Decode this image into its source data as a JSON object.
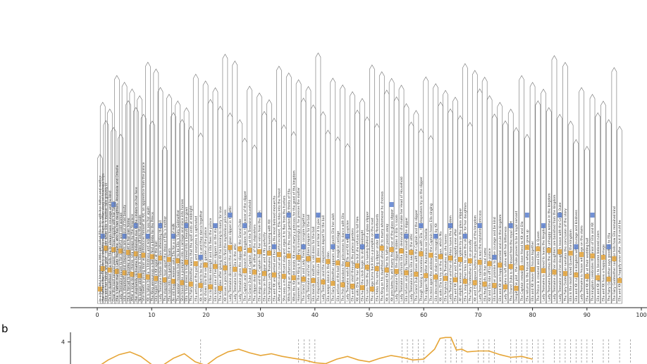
{
  "panel_labels": {
    "b": "b"
  },
  "chart_data": [
    {
      "type": "timeline",
      "xlim": [
        0,
        100
      ],
      "xticks": [
        0,
        10,
        20,
        30,
        40,
        50,
        60,
        70,
        80,
        90,
        100
      ],
      "tick_labels": [
        "0",
        "10",
        "20",
        "30",
        "40",
        "50",
        "60",
        "70",
        "80",
        "90",
        "100"
      ],
      "grid": false,
      "colors": {
        "frame": "#6f6f6f",
        "protagonist_tag": "#e6a537",
        "other_tag": "#5b7fcf",
        "text": "#333333",
        "axis": "#222222"
      },
      "events": [
        {
          "x": 0.5,
          "text": "In a beautiful kingdom, a little girl called Ella lives with her father and mother"
        },
        {
          "x": 1.0,
          "text": "Her father ( Ben Chaplin ), a wealthy merchant, is often away on business trips"
        },
        {
          "x": 1.6,
          "text": "Ella and her father are grief - stricken when Ella 's mother falls gravely ill"
        },
        {
          "x": 2.3,
          "text": "On her deathbed , she tells Ella to always have courage and be kind"
        },
        {
          "x": 3.0,
          "text": "Over the next several years , Ella lives happily with her father"
        },
        {
          "x": 3.6,
          "text": "Ella 's father marries Lady Tremaine, who has two daughters, Anastasia and Drisella"
        },
        {
          "x": 4.3,
          "text": "Lady Tremaine proves to be a prideful and cold woman"
        },
        {
          "x": 5.0,
          "text": "Ella 's stepmother and stepsisters are jealous of her beauty"
        },
        {
          "x": 5.7,
          "text": "Ella is forced to become a servant in her own home"
        },
        {
          "x": 6.4,
          "text": "After a long day of chores, Ella sleeps by the fireplace"
        },
        {
          "x": 7.1,
          "text": "Her stepfamily nickname her Cinderella due to the cinders on her face"
        },
        {
          "x": 7.8,
          "text": "No longer able to bear it, Ella rides off into the woods"
        },
        {
          "x": 8.5,
          "text": "She meets a young man who introduces himself as Kit, an apprentice from the palace"
        },
        {
          "x": 9.3,
          "text": "Kit is taken by Ella 's kindness and wishes to see her again"
        },
        {
          "x": 10.1,
          "text": "The King announces a ball to find a bride for the Prince"
        },
        {
          "x": 10.8,
          "text": "Ella hopes to see Kit again at the ball"
        },
        {
          "x": 11.6,
          "text": "Lady Tremaine forbids Ella from attending the ball"
        },
        {
          "x": 12.4,
          "text": "The stepsisters tear apart the dress of Ella 's mother"
        },
        {
          "x": 13.2,
          "text": "Ella runs into the garden in tears"
        },
        {
          "x": 14.0,
          "text": "An old beggar woman asks Ella for a cup of milk"
        },
        {
          "x": 14.8,
          "text": "The woman reveals herself to be Ella 's Fairy Godmother"
        },
        {
          "x": 15.6,
          "text": "She transforms a pumpkin into a carriage and mice into horses"
        },
        {
          "x": 16.4,
          "text": "Ella 's torn dress is transformed into a beautiful blue gown"
        },
        {
          "x": 17.2,
          "text": "The Fairy Godmother warns that the spell ends at midnight"
        },
        {
          "x": 18.1,
          "text": "Ella arrives at the palace and everyone is captivated"
        },
        {
          "x": 19.0,
          "text": "Kit is revealed to be the Prince and they dance together"
        },
        {
          "x": 19.9,
          "text": "Kit shows Ella the secret garden of the palace"
        },
        {
          "x": 20.8,
          "text": "The clock strikes midnight and Ella flees the palace"
        },
        {
          "x": 21.7,
          "text": "Ella loses one of her glass slippers on the stairs"
        },
        {
          "x": 22.6,
          "text": "The King dies after giving Kit his blessing to marry for love"
        },
        {
          "x": 23.5,
          "text": "Kit issues a proclamation to find the mysterious princess"
        },
        {
          "x": 24.4,
          "text": "Lady Tremaine discovers the other glass slipper in the attic"
        },
        {
          "x": 25.3,
          "text": "Lady Tremaine locks Ella in the attic"
        },
        {
          "x": 26.2,
          "text": "Lady Tremaine gives the slipper to the Grand Duke"
        },
        {
          "x": 27.1,
          "text": "The Captain and Kit search the kingdom for the owner of the slipper"
        },
        {
          "x": 28.0,
          "text": "The Grand Duke and Captain arrive at the Tremaine household"
        },
        {
          "x": 28.9,
          "text": "The slipper does not fit either of the stepsisters"
        },
        {
          "x": 29.8,
          "text": "Ella sings and the Captain hears her voice from the attic"
        },
        {
          "x": 30.7,
          "text": "Ella tries on the slipper and it fits perfectly"
        },
        {
          "x": 31.6,
          "text": "Ella forgives Lady Tremaine before leaving with Kit"
        },
        {
          "x": 32.5,
          "text": "Ella and Kit are married and become the most beloved monarchs"
        },
        {
          "x": 33.4,
          "text": "After a particularly cruel and hurtful incident, Ella rides into the forest"
        },
        {
          "x": 34.3,
          "text": "She sees a magnificent stag and urges it to flee from the hunters"
        },
        {
          "x": 35.2,
          "text": "While taking an afternoon stroll in the royal gardens, Kit thinks of Ella"
        },
        {
          "x": 36.1,
          "text": "When the King still insists Kit must marry a princess for the good of the kingdom"
        },
        {
          "x": 37.0,
          "text": "However, as the King is growing increasingly ill, he presses the matter"
        },
        {
          "x": 37.9,
          "text": "The Grand Duke and Lady Tremaine conspire together"
        },
        {
          "x": 38.8,
          "text": "Lady Tremaine and her daughters prepare for the ball"
        },
        {
          "x": 39.7,
          "text": "Ella mends her mother 's old dress for the ball"
        },
        {
          "x": 40.6,
          "text": "The stepsisters ridicule the dress and tear it to pieces"
        },
        {
          "x": 41.5,
          "text": "Lady Tremaine and the stepsisters depart for the ball"
        },
        {
          "x": 42.4,
          "text": "Ella weeps alone in the garden"
        },
        {
          "x": 43.3,
          "text": "The Fairy Godmother appears and grants Ella her wish"
        },
        {
          "x": 44.2,
          "text": "Ella arrives at the ball in a magical carriage"
        },
        {
          "x": 45.1,
          "text": "The Prince abandons the princesses to dance with Ella"
        },
        {
          "x": 46.0,
          "text": "Lady Tremaine watches Ella and Kit with suspicion"
        },
        {
          "x": 46.9,
          "text": "Ella and Kit stroll through the palace gardens"
        },
        {
          "x": 47.8,
          "text": "Kit asks Ella for her name but she refuses to tell him"
        },
        {
          "x": 48.7,
          "text": "Ella hears the clock begin to strike midnight"
        },
        {
          "x": 49.6,
          "text": "Ella runs from the palace leaving behind a glass slipper"
        },
        {
          "x": 50.5,
          "text": "The carriage turns back into a pumpkin on the road"
        },
        {
          "x": 51.4,
          "text": "Ella hides the remaining slipper under the floorboards"
        },
        {
          "x": 52.3,
          "text": "The King on his deathbed allows Kit to marry whomever he chooses"
        },
        {
          "x": 53.2,
          "text": "Kit is crowned King after his father passes away"
        },
        {
          "x": 54.1,
          "text": "Kit proclaims he will marry the owner of the glass slipper"
        },
        {
          "x": 55.0,
          "text": "Lady Tremaine finds the slipper hidden in Ella 's room"
        },
        {
          "x": 55.9,
          "text": "Lady Tremaine confronts Ella and demands she make her Head of Household"
        },
        {
          "x": 56.8,
          "text": "Ella refuses and Lady Tremaine smashes the slipper"
        },
        {
          "x": 57.7,
          "text": "Lady Tremaine locks Ella away in the attic"
        },
        {
          "x": 58.6,
          "text": "The Grand Duke arrives with the Captain and the slipper"
        },
        {
          "x": 59.5,
          "text": "Though fearing a marvelous time with Ella , the stepsisters try on the slipper"
        },
        {
          "x": 60.4,
          "text": "The slipper fits neither Anastasia nor Drisella"
        },
        {
          "x": 61.3,
          "text": "The mice open the window so the Captain hears Ella singing"
        },
        {
          "x": 62.2,
          "text": "Ella descends the stairs and is recognised by Kit"
        },
        {
          "x": 63.1,
          "text": "Kit asks Ella to try on the slipper, which fits"
        },
        {
          "x": 64.0,
          "text": "Ella forgives Lady Tremaine as she leaves"
        },
        {
          "x": 64.9,
          "text": "Lady Tremaine and her daughters leave the kingdom"
        },
        {
          "x": 65.8,
          "text": "Ella and Kit marry and live happily ever after"
        },
        {
          "x": 66.7,
          "text": "All eligible women in the kingdom try on the glass slipper"
        },
        {
          "x": 67.6,
          "text": "Ella 's stepmother tries to claim the slipper for her daughters"
        },
        {
          "x": 68.5,
          "text": "The Fairy Godmother looks on proudly"
        },
        {
          "x": 69.4,
          "text": "Kit and Ella appear before the people of the kingdom"
        },
        {
          "x": 70.3,
          "text": "Lady Tremaine realises Ella was the mysterious princess"
        },
        {
          "x": 71.2,
          "text": "Ella finally tells Kit her real name"
        },
        {
          "x": 72.1,
          "text": "Kit and Ella ride off to the palace"
        },
        {
          "x": 73.0,
          "text": "Ella keeps her promise to have courage and be kind"
        },
        {
          "x": 74.0,
          "text": "Ella and Kit are happily married and rule the kingdom"
        },
        {
          "x": 75.0,
          "text": "Lady Tremaine is left alone with her bitterness"
        },
        {
          "x": 76.0,
          "text": "The Grand Duke is dismissed from the royal court"
        },
        {
          "x": 77.0,
          "text": "Despite this plot , the Duke proves to be a loyal servant"
        },
        {
          "x": 78.0,
          "text": "The Captain remains a close friend to Kit and Ella"
        },
        {
          "x": 79.0,
          "text": "Ella returns to the house where she grew up"
        },
        {
          "x": 80.0,
          "text": "Ella and Kit leave the house together"
        },
        {
          "x": 81.0,
          "text": "The Prince is crowned and Ella is his Queen"
        },
        {
          "x": 82.0,
          "text": "Lady Tremaine is ordered to leave the kingdom"
        },
        {
          "x": 83.0,
          "text": "Lady Tremaine becomes the most unhappy woman in the kingdom"
        },
        {
          "x": 84.0,
          "text": "Lady Tremaine and her daughters are banished from the kingdom"
        },
        {
          "x": 85.0,
          "text": "Lady Tremaine and her daughters leave with the Grand Duke"
        },
        {
          "x": 86.0,
          "text": "The Fairy Godmother narrates the conclusion of the story"
        },
        {
          "x": 87.0,
          "text": "Ella is the most loved Queen in the kingdom"
        },
        {
          "x": 88.0,
          "text": "Ella and Kit rule the kingdom with courage and kindness"
        },
        {
          "x": 89.0,
          "text": "Lady Tremaine is frozen with rage on the stairs"
        },
        {
          "x": 90.0,
          "text": "Ella and Kit dance at their wedding ball"
        },
        {
          "x": 91.0,
          "text": "The kingdom celebrates the union of Ella and Kit"
        },
        {
          "x": 92.0,
          "text": "Ella and Kit go on to become beloved rulers"
        },
        {
          "x": 93.0,
          "text": "Ella and Kit have a happy marriage"
        },
        {
          "x": 94.0,
          "text": "The Fairy Godmother says goodbye to Ella"
        },
        {
          "x": 95.0,
          "text": "The Fairy Godmother narrator tells how Ella remained kind"
        },
        {
          "x": 96.0,
          "text": "Ella and Kit live happily ever after , but it could be"
        }
      ]
    },
    {
      "type": "line",
      "xlim": [
        0,
        100
      ],
      "ylim": [
        0,
        4.6
      ],
      "ytick_labels": [
        "4"
      ],
      "yticks": [
        4
      ],
      "colors": {
        "line": "#e6a537",
        "ref": "#9a9a9a"
      },
      "x": [
        0,
        2,
        4,
        6,
        8,
        10,
        12,
        14,
        16,
        18,
        20,
        22,
        24,
        26,
        28,
        30,
        32,
        34,
        36,
        38,
        40,
        42,
        44,
        46,
        48,
        50,
        52,
        54,
        56,
        58,
        60,
        62,
        63,
        64,
        65,
        66,
        67,
        68,
        70,
        72,
        74,
        76,
        78,
        80
      ],
      "values": [
        1.2,
        2.0,
        2.6,
        2.9,
        2.4,
        1.5,
        1.4,
        2.2,
        2.7,
        1.8,
        1.4,
        2.3,
        2.9,
        3.2,
        2.8,
        2.5,
        2.7,
        2.4,
        2.2,
        2.0,
        1.7,
        1.6,
        2.1,
        2.4,
        2.0,
        1.8,
        2.2,
        2.5,
        2.3,
        2.0,
        2.1,
        3.2,
        4.4,
        4.5,
        4.5,
        3.1,
        3.2,
        2.9,
        3.0,
        3.0,
        2.6,
        2.3,
        2.4,
        2.1
      ],
      "ref_lines": [
        19,
        37,
        38,
        39,
        40,
        56,
        57,
        58,
        59,
        60,
        64,
        65,
        66,
        67,
        70,
        71,
        72,
        73,
        76,
        77,
        78,
        79,
        80,
        81,
        82,
        84,
        85,
        86,
        87,
        88,
        89,
        90,
        91,
        93,
        94,
        96,
        98
      ]
    }
  ]
}
